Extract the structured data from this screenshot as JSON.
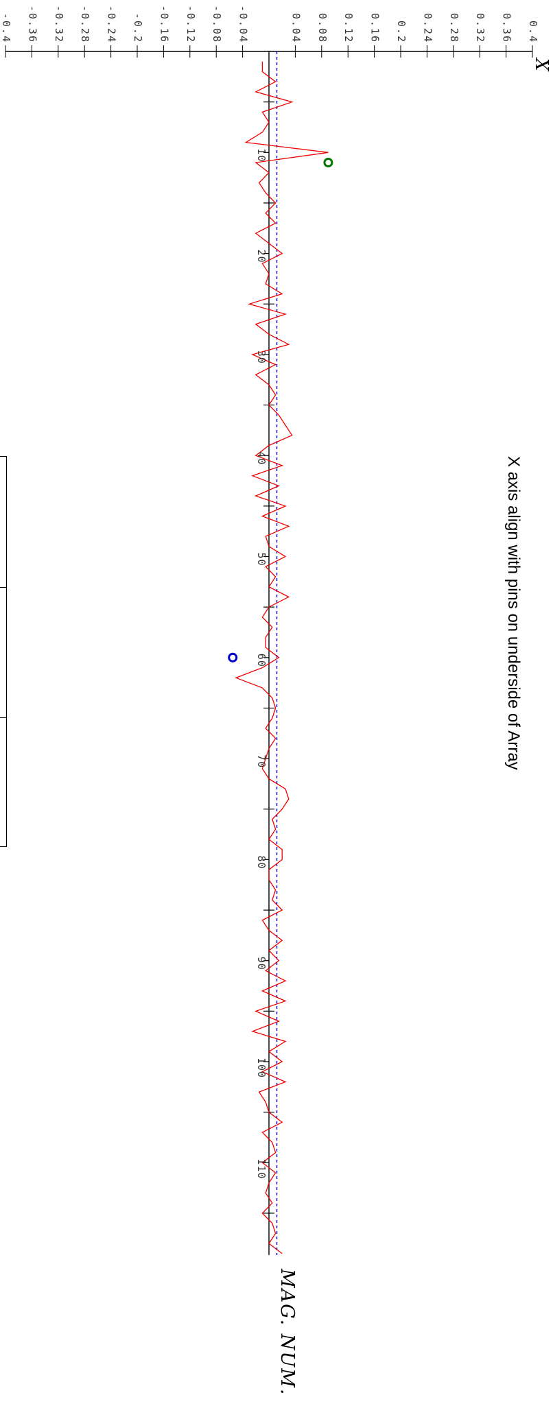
{
  "chart_data": {
    "type": "line",
    "title": "X axis align with pins on underside of Array",
    "xlabel": "MAG. NUM.",
    "ylabel": "X",
    "xlim": [
      0,
      118
    ],
    "ylim": [
      -0.4,
      0.4
    ],
    "x_ticks": [
      10,
      20,
      30,
      40,
      50,
      60,
      70,
      80,
      90,
      100,
      110
    ],
    "y_ticks": [
      -0.4,
      -0.36,
      -0.32,
      -0.28,
      -0.24,
      -0.2,
      -0.16,
      -0.12,
      -0.08,
      -0.04,
      0.04,
      0.08,
      0.12,
      0.16,
      0.2,
      0.24,
      0.28,
      0.32,
      0.36,
      0.4
    ],
    "y_tick_labels": [
      "-0.4",
      "-0.36",
      "-0.32",
      "-0.28",
      "-0.24",
      "-0.2",
      "-0.16",
      "-0.12",
      "-0.08",
      "-0.04",
      "0.04",
      "0.08",
      "0.12",
      "0.16",
      "0.2",
      "0.24",
      "0.28",
      "0.32",
      "0.36",
      "0.4"
    ],
    "reference_line": {
      "y": 0.012,
      "style": "dotted",
      "color": "#0000ee"
    },
    "series": [
      {
        "color": "#ee0000",
        "x": [
          1,
          2,
          3,
          4,
          5,
          6,
          7,
          8,
          9,
          10,
          11,
          12,
          13,
          14,
          15,
          16,
          17,
          18,
          19,
          20,
          21,
          22,
          23,
          24,
          25,
          26,
          27,
          28,
          29,
          30,
          31,
          32,
          33,
          34,
          35,
          36,
          37,
          38,
          39,
          40,
          41,
          42,
          43,
          44,
          45,
          46,
          47,
          48,
          49,
          50,
          51,
          52,
          53,
          54,
          55,
          56,
          57,
          58,
          59,
          60,
          61,
          62,
          63,
          64,
          65,
          66,
          67,
          68,
          69,
          70,
          71,
          72,
          73,
          74,
          75,
          76,
          77,
          78,
          79,
          80,
          81,
          82,
          83,
          84,
          85,
          86,
          87,
          88,
          89,
          90,
          91,
          92,
          93,
          94,
          95,
          96,
          97,
          98,
          99,
          100,
          101,
          102,
          103,
          104,
          105,
          106,
          107,
          108,
          109,
          110,
          111,
          112,
          113,
          114,
          115,
          116,
          117,
          118,
          119
        ],
        "y": [
          -0.01,
          -0.01,
          0.01,
          -0.02,
          0.035,
          -0.01,
          0.0,
          -0.01,
          -0.035,
          0.09,
          -0.02,
          0.0,
          -0.015,
          -0.005,
          0.01,
          -0.005,
          0.01,
          -0.02,
          0.0,
          0.02,
          -0.01,
          0.0,
          -0.005,
          0.02,
          -0.03,
          0.025,
          -0.02,
          0.0,
          0.03,
          -0.025,
          0.01,
          -0.02,
          0.0,
          0.01,
          0.0,
          0.015,
          0.025,
          0.035,
          0.0,
          -0.02,
          0.02,
          -0.025,
          0.015,
          -0.02,
          0.025,
          -0.01,
          0.03,
          -0.005,
          0.0,
          0.025,
          -0.005,
          0.01,
          0.0,
          0.03,
          0.0,
          -0.01,
          0.005,
          -0.005,
          -0.005,
          0.015,
          -0.01,
          -0.05,
          -0.01,
          0.005,
          0.01,
          0.005,
          -0.005,
          0.01,
          0.0,
          -0.005,
          -0.01,
          0.0,
          0.025,
          0.03,
          0.02,
          0.005,
          0.01,
          0.0,
          0.02,
          0.02,
          0.0,
          0.0,
          0.01,
          0.005,
          0.02,
          -0.01,
          0.0,
          0.02,
          0.0,
          0.015,
          -0.005,
          0.025,
          -0.01,
          0.025,
          -0.02,
          0.015,
          -0.025,
          0.025,
          0.0,
          0.02,
          -0.01,
          0.025,
          -0.015,
          -0.005,
          0.0,
          0.02,
          -0.01,
          0.005,
          0.01,
          -0.01,
          0.01,
          0.0,
          -0.005,
          0.005,
          -0.01,
          0.005,
          0.01,
          0.0,
          0.02
        ]
      }
    ],
    "markers": [
      {
        "x": 11,
        "y": 0.09,
        "color": "#007700"
      },
      {
        "x": 60,
        "y": -0.055,
        "color": "#0000cc"
      }
    ]
  }
}
